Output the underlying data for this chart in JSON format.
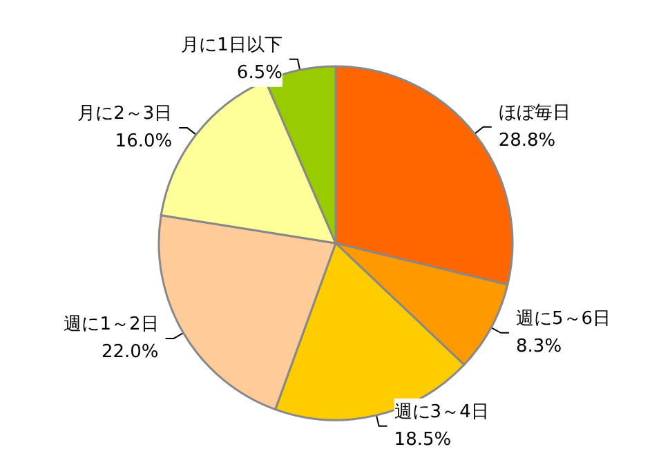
{
  "chart_data": {
    "type": "pie",
    "categories": [
      "ほぼ毎日",
      "週に5～6日",
      "週に3～4日",
      "週に1～2日",
      "月に2～3日",
      "月に1日以下"
    ],
    "values": [
      28.8,
      8.3,
      18.5,
      22.0,
      16.0,
      6.5
    ],
    "colors": [
      "#ff6600",
      "#ff9900",
      "#ffcc00",
      "#ffcc99",
      "#ffff99",
      "#99cc00"
    ],
    "value_labels": [
      "28.8%",
      "8.3%",
      "18.5%",
      "22.0%",
      "16.0%",
      "6.5%"
    ],
    "legend": false
  }
}
